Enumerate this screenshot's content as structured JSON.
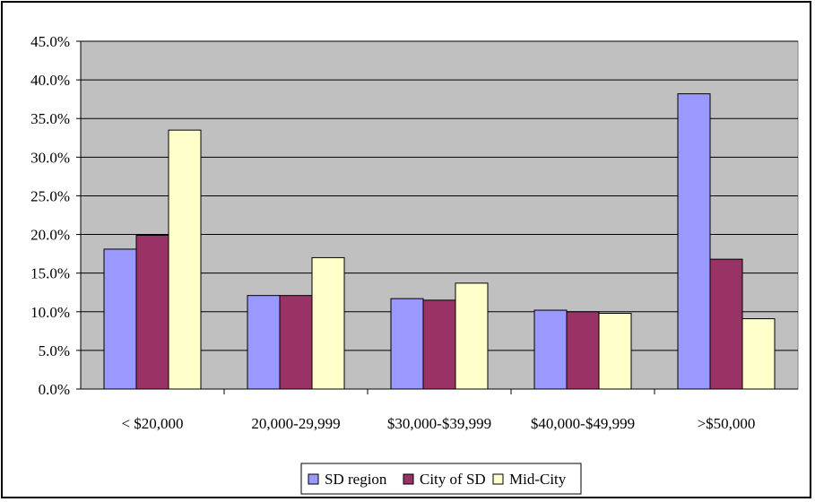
{
  "chart_data": {
    "type": "bar",
    "title": "",
    "xlabel": "",
    "ylabel": "",
    "categories": [
      "< $20,000",
      "20,000-29,999",
      "$30,000-$39,999",
      "$40,000-$49,999",
      ">$50,000"
    ],
    "series": [
      {
        "name": "SD region",
        "values": [
          18.1,
          12.1,
          11.7,
          10.2,
          38.2
        ]
      },
      {
        "name": "City of SD",
        "values": [
          19.9,
          12.1,
          11.5,
          10.0,
          16.8
        ]
      },
      {
        "name": "Mid-City",
        "values": [
          33.5,
          17.0,
          13.7,
          9.8,
          9.1
        ]
      }
    ],
    "ylim": [
      0,
      45
    ],
    "yticks": [
      0,
      5,
      10,
      15,
      20,
      25,
      30,
      35,
      40,
      45
    ],
    "ytick_labels": [
      "0.0%",
      "5.0%",
      "10.0%",
      "15.0%",
      "20.0%",
      "25.0%",
      "30.0%",
      "35.0%",
      "40.0%",
      "45.0%"
    ],
    "grid": true,
    "legend_position": "bottom",
    "colors": {
      "SD region": "#9999ff",
      "City of SD": "#993366",
      "Mid-City": "#ffffcc",
      "plot_background": "#c0c0c0",
      "gridline": "#000000"
    }
  }
}
